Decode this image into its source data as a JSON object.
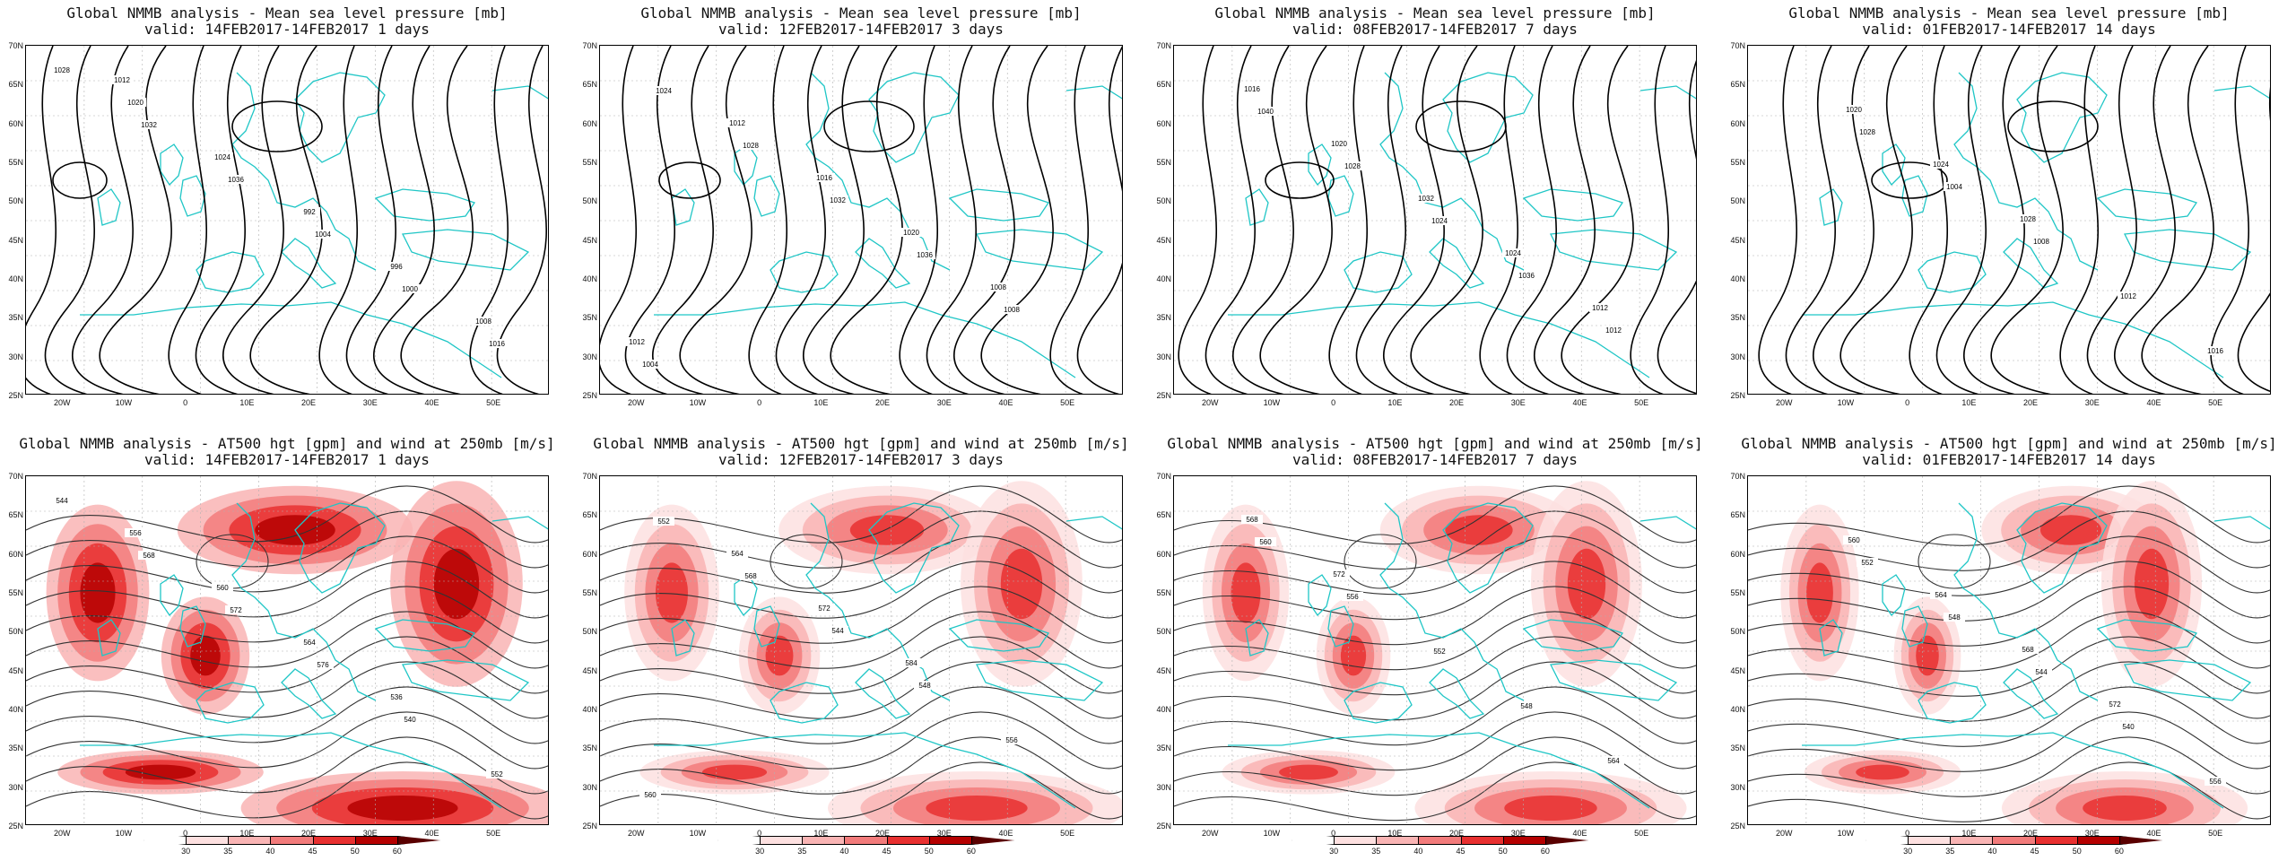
{
  "panels": [
    {
      "title": "Global NMMB analysis - Mean sea level pressure [mb]",
      "valid": "valid: 14FEB2017-14FEB2017  1 days",
      "field": "mslp",
      "labels": [
        {
          "t": "1028"
        },
        {
          "t": "1032"
        },
        {
          "t": "1036"
        },
        {
          "t": "1004"
        },
        {
          "t": "1000"
        },
        {
          "t": "1016"
        },
        {
          "t": "1020"
        },
        {
          "t": "1024"
        },
        {
          "t": "992"
        },
        {
          "t": "996"
        },
        {
          "t": "1008"
        },
        {
          "t": "1012"
        }
      ]
    },
    {
      "title": "Global NMMB analysis - Mean sea level pressure [mb]",
      "valid": "valid: 12FEB2017-14FEB2017  3 days",
      "field": "mslp",
      "labels": [
        {
          "t": "1024"
        },
        {
          "t": "1028"
        },
        {
          "t": "1032"
        },
        {
          "t": "1036"
        },
        {
          "t": "1008"
        },
        {
          "t": "1004"
        },
        {
          "t": "1012"
        },
        {
          "t": "1016"
        },
        {
          "t": "1020"
        },
        {
          "t": "1008"
        },
        {
          "t": "1012"
        }
      ]
    },
    {
      "title": "Global NMMB analysis - Mean sea level pressure [mb]",
      "valid": "valid: 08FEB2017-14FEB2017  7 days",
      "field": "mslp",
      "labels": [
        {
          "t": "1040"
        },
        {
          "t": "1028"
        },
        {
          "t": "1024"
        },
        {
          "t": "1036"
        },
        {
          "t": "1012"
        },
        {
          "t": "1016"
        },
        {
          "t": "1020"
        },
        {
          "t": "1032"
        },
        {
          "t": "1024"
        },
        {
          "t": "1012"
        }
      ]
    },
    {
      "title": "Global NMMB analysis - Mean sea level pressure [mb]",
      "valid": "valid: 01FEB2017-14FEB2017  14 days",
      "field": "mslp",
      "labels": [
        {
          "t": "1028"
        },
        {
          "t": "1004"
        },
        {
          "t": "1008"
        },
        {
          "t": "1012"
        },
        {
          "t": "1016"
        },
        {
          "t": "1020"
        },
        {
          "t": "1024"
        },
        {
          "t": "1028"
        }
      ]
    },
    {
      "title": "Global NMMB analysis - AT500 hgt [gpm] and wind at 250mb [m/s]",
      "valid": "valid: 14FEB2017-14FEB2017  1 days",
      "field": "z500",
      "labels": [
        {
          "t": "544"
        },
        {
          "t": "568"
        },
        {
          "t": "572"
        },
        {
          "t": "576"
        },
        {
          "t": "540"
        },
        {
          "t": "552"
        },
        {
          "t": "556"
        },
        {
          "t": "560"
        },
        {
          "t": "564"
        },
        {
          "t": "536"
        }
      ]
    },
    {
      "title": "Global NMMB analysis - AT500 hgt [gpm] and wind at 250mb [m/s]",
      "valid": "valid: 12FEB2017-14FEB2017  3 days",
      "field": "z500",
      "labels": [
        {
          "t": "552"
        },
        {
          "t": "568"
        },
        {
          "t": "544"
        },
        {
          "t": "548"
        },
        {
          "t": "556"
        },
        {
          "t": "560"
        },
        {
          "t": "564"
        },
        {
          "t": "572"
        },
        {
          "t": "584"
        }
      ]
    },
    {
      "title": "Global NMMB analysis - AT500 hgt [gpm] and wind at 250mb [m/s]",
      "valid": "valid: 08FEB2017-14FEB2017  7 days",
      "field": "z500",
      "labels": [
        {
          "t": "560"
        },
        {
          "t": "556"
        },
        {
          "t": "552"
        },
        {
          "t": "548"
        },
        {
          "t": "564"
        },
        {
          "t": "568"
        },
        {
          "t": "572"
        }
      ]
    },
    {
      "title": "Global NMMB analysis - AT500 hgt [gpm] and wind at 250mb [m/s]",
      "valid": "valid: 01FEB2017-14FEB2017  14 days",
      "field": "z500",
      "labels": [
        {
          "t": "552"
        },
        {
          "t": "548"
        },
        {
          "t": "544"
        },
        {
          "t": "540"
        },
        {
          "t": "556"
        },
        {
          "t": "560"
        },
        {
          "t": "564"
        },
        {
          "t": "568"
        },
        {
          "t": "572"
        }
      ]
    }
  ],
  "lat_labels": [
    "70N",
    "65N",
    "60N",
    "55N",
    "50N",
    "45N",
    "40N",
    "35N",
    "30N",
    "25N"
  ],
  "lon_labels": [
    "20W",
    "10W",
    "0",
    "10E",
    "20E",
    "30E",
    "40E",
    "50E"
  ],
  "colorbar": {
    "labels": [
      "30",
      "35",
      "40",
      "45",
      "50",
      "60"
    ],
    "colors": [
      "#ffffff",
      "#fde0e0",
      "#f9b4b4",
      "#f27b7b",
      "#e83030",
      "#b50000",
      "#5a0000"
    ]
  },
  "colors": {
    "coast": "#1fc6c6",
    "contour": "#000000",
    "grid": "#b0b0b0"
  }
}
